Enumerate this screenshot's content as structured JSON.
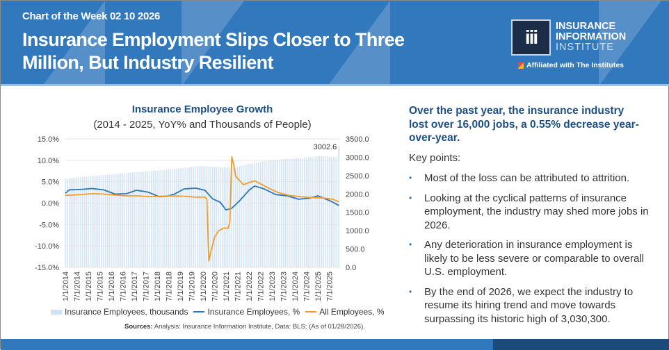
{
  "header": {
    "kicker": "Chart of the Week 02 10 2026",
    "title": "Insurance Employment Slips Closer to Three Million, But Industry Resilient",
    "logo": {
      "mark": "iii",
      "line1": "INSURANCE",
      "line2": "INFORMATION",
      "line3": "INSTITUTE"
    },
    "affiliation": "Affiliated with The Institutes"
  },
  "colors": {
    "bars": "#cfe2f3",
    "insurance_pct": "#2e75b6",
    "all_pct": "#f39c2b",
    "header": "#3278bd",
    "footer_dark": "#1c4a7a",
    "title_text": "#1d4f86"
  },
  "chart_data": {
    "type": "bar+line",
    "title": "Insurance Employee Growth",
    "subtitle": "(2014 - 2025, YoY% and Thousands of People)",
    "left_axis": {
      "ticks": [
        "15.0%",
        "10.0%",
        "5.0%",
        "0.0%",
        "-5.0%",
        "-10.0%",
        "-15.0%"
      ],
      "range": [
        -15,
        15
      ]
    },
    "right_axis": {
      "ticks": [
        "3500.0",
        "3000.0",
        "2500.0",
        "2000.0",
        "1500.0",
        "1000.0",
        "500.0",
        "0.0"
      ],
      "range": [
        0,
        3500
      ]
    },
    "x_ticks": [
      "1/1/2014",
      "7/1/2014",
      "1/1/2015",
      "7/1/2015",
      "1/1/2016",
      "7/1/2016",
      "1/1/2017",
      "7/1/2017",
      "1/1/2018",
      "7/1/2018",
      "1/1/2019",
      "7/1/2019",
      "1/1/2020",
      "7/1/2020",
      "1/1/2021",
      "7/1/2021",
      "1/1/2022",
      "7/1/2022",
      "1/1/2023",
      "7/1/2023",
      "1/1/2024",
      "7/1/2024",
      "1/1/2025",
      "7/1/2025"
    ],
    "annotation": "3002.6",
    "series": [
      {
        "name": "Insurance Employees, thousands",
        "type": "bar",
        "axis": "right",
        "points": [
          [
            "2014-01",
            2420
          ],
          [
            "2015-01",
            2480
          ],
          [
            "2016-01",
            2530
          ],
          [
            "2017-01",
            2590
          ],
          [
            "2018-01",
            2640
          ],
          [
            "2019-01",
            2700
          ],
          [
            "2020-01",
            2760
          ],
          [
            "2020-06",
            2740
          ],
          [
            "2021-01",
            2720
          ],
          [
            "2021-07",
            2740
          ],
          [
            "2022-01",
            2820
          ],
          [
            "2022-07",
            2870
          ],
          [
            "2023-01",
            2920
          ],
          [
            "2023-07",
            2950
          ],
          [
            "2024-01",
            2970
          ],
          [
            "2024-07",
            2990
          ],
          [
            "2025-01",
            3030
          ],
          [
            "2025-07",
            3020
          ],
          [
            "2025-12",
            3002.6
          ]
        ]
      },
      {
        "name": "Insurance Employees, %",
        "type": "line",
        "axis": "left",
        "points": [
          [
            "2014-01",
            2.3
          ],
          [
            "2014-03",
            3.1
          ],
          [
            "2014-09",
            3.2
          ],
          [
            "2015-03",
            3.4
          ],
          [
            "2015-09",
            3.1
          ],
          [
            "2016-03",
            2.1
          ],
          [
            "2016-09",
            2.2
          ],
          [
            "2017-02",
            3.0
          ],
          [
            "2017-08",
            2.6
          ],
          [
            "2018-02",
            1.5
          ],
          [
            "2018-06",
            1.6
          ],
          [
            "2018-10",
            2.1
          ],
          [
            "2019-03",
            3.3
          ],
          [
            "2019-09",
            3.5
          ],
          [
            "2020-02",
            3.0
          ],
          [
            "2020-06",
            1.0
          ],
          [
            "2020-10",
            0.2
          ],
          [
            "2021-01",
            -1.6
          ],
          [
            "2021-04",
            -1.2
          ],
          [
            "2021-08",
            0.5
          ],
          [
            "2022-01",
            3.0
          ],
          [
            "2022-04",
            4.0
          ],
          [
            "2022-09",
            3.3
          ],
          [
            "2023-03",
            2.0
          ],
          [
            "2023-09",
            1.7
          ],
          [
            "2024-03",
            0.9
          ],
          [
            "2024-09",
            1.2
          ],
          [
            "2025-01",
            1.7
          ],
          [
            "2025-06",
            0.8
          ],
          [
            "2025-09",
            0.2
          ],
          [
            "2025-12",
            -0.55
          ]
        ]
      },
      {
        "name": "All Employees, %",
        "type": "line",
        "axis": "left",
        "points": [
          [
            "2014-01",
            1.8
          ],
          [
            "2014-09",
            2.0
          ],
          [
            "2015-03",
            2.2
          ],
          [
            "2015-09",
            2.1
          ],
          [
            "2016-03",
            1.9
          ],
          [
            "2016-09",
            1.7
          ],
          [
            "2017-03",
            1.7
          ],
          [
            "2017-09",
            1.5
          ],
          [
            "2018-03",
            1.6
          ],
          [
            "2018-09",
            1.7
          ],
          [
            "2019-03",
            1.6
          ],
          [
            "2019-09",
            1.4
          ],
          [
            "2020-02",
            1.4
          ],
          [
            "2020-03",
            0.9
          ],
          [
            "2020-04",
            -13.5
          ],
          [
            "2020-05",
            -11.5
          ],
          [
            "2020-07",
            -8.0
          ],
          [
            "2020-09",
            -6.5
          ],
          [
            "2020-12",
            -5.8
          ],
          [
            "2021-02",
            -5.9
          ],
          [
            "2021-03",
            -4.5
          ],
          [
            "2021-04",
            10.8
          ],
          [
            "2021-05",
            9.0
          ],
          [
            "2021-06",
            6.3
          ],
          [
            "2021-10",
            4.3
          ],
          [
            "2022-01",
            4.8
          ],
          [
            "2022-04",
            5.2
          ],
          [
            "2022-10",
            3.8
          ],
          [
            "2023-04",
            2.5
          ],
          [
            "2023-10",
            1.8
          ],
          [
            "2024-04",
            1.5
          ],
          [
            "2024-10",
            1.3
          ],
          [
            "2025-04",
            1.2
          ],
          [
            "2025-09",
            0.9
          ],
          [
            "2025-12",
            0.3
          ]
        ]
      }
    ],
    "legend": [
      "Insurance Employees, thousands",
      "Insurance Employees, %",
      "All Employees, %"
    ],
    "legend_position": "bottom",
    "source_label": "Sources:",
    "source": "Analysis: Insurance Information Institute, Data: BLS; (As of 01/28/2026)."
  },
  "summary": {
    "headline": "Over the past year, the insurance industry lost over 16,000 jobs, a 0.55% decrease year-over-year.",
    "key_points_label": "Key points:",
    "bullet_glyph": "•",
    "bullets": [
      "Most of the loss can be attributed to attrition.",
      "Looking at the cyclical patterns of insurance employment, the industry may shed more jobs in 2026.",
      "Any deterioration in insurance employment is likely to be less severe or comparable to overall U.S. employment.",
      "By the end of 2026, we expect the industry to resume its hiring trend and move towards surpassing its historic high of 3,030,300."
    ]
  }
}
